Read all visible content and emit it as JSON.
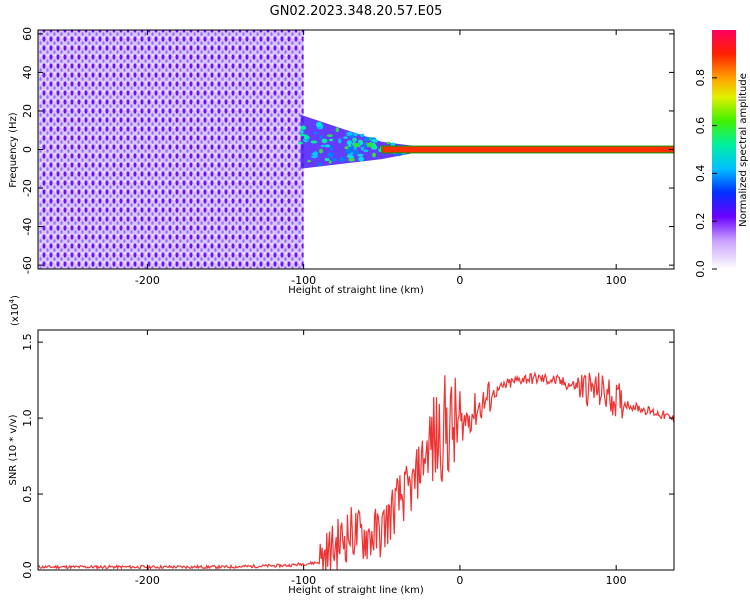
{
  "title": "GN02.2023.348.20.57.E05",
  "chart_data": [
    {
      "type": "heatmap",
      "xlabel": "Height of straight line (km)",
      "ylabel": "Frequency (Hz)",
      "xlim": [
        -270,
        137
      ],
      "ylim": [
        -62,
        62
      ],
      "xticks": [
        -200,
        -100,
        0,
        100
      ],
      "yticks": [
        60,
        40,
        20,
        0,
        -20,
        -40,
        -60
      ],
      "colorbar": {
        "label": "Normalized spectral amplitude",
        "range": [
          0,
          1
        ],
        "ticks": [
          "0.0",
          "0.2",
          "0.4",
          "0.6",
          "0.8"
        ]
      },
      "regions": [
        {
          "name": "broadband noise",
          "x": [
            -270,
            -100
          ],
          "y": [
            -62,
            62
          ],
          "amplitude": 0.25
        },
        {
          "name": "blob",
          "x": [
            -102,
            -50
          ],
          "y": [
            -10,
            18
          ],
          "amplitude": 0.45
        },
        {
          "name": "narrow tone",
          "x": [
            -50,
            137
          ],
          "y": [
            -1,
            1
          ],
          "amplitude": 0.9
        }
      ]
    },
    {
      "type": "line",
      "xlabel": "Height of straight line (km)",
      "ylabel": "SNR (10 * v/v)",
      "y_multiplier": "(x10",
      "y_multiplier_exp": "4",
      "y_multiplier_close": ")",
      "xlim": [
        -270,
        137
      ],
      "ylim": [
        0,
        1.58
      ],
      "xticks": [
        -200,
        -100,
        0,
        100
      ],
      "yticks": [
        "0.0",
        "0.5",
        "1.0",
        "1.5"
      ],
      "color": "#ee3333",
      "series": [
        {
          "x": [
            -270,
            -150,
            -110,
            -90,
            -80,
            -70,
            -60,
            -50,
            -40,
            -30,
            -25,
            -20,
            -15,
            -10,
            -5,
            0,
            10,
            20,
            30,
            40,
            50,
            60,
            70,
            80,
            90,
            100,
            110,
            120,
            130,
            137
          ],
          "y": [
            0.02,
            0.02,
            0.03,
            0.05,
            0.15,
            0.25,
            0.22,
            0.25,
            0.45,
            0.55,
            0.7,
            0.8,
            0.85,
            0.95,
            0.92,
            0.95,
            1.05,
            1.15,
            1.22,
            1.26,
            1.26,
            1.25,
            1.22,
            1.2,
            1.18,
            1.12,
            1.08,
            1.05,
            1.02,
            0.99
          ]
        }
      ]
    }
  ]
}
